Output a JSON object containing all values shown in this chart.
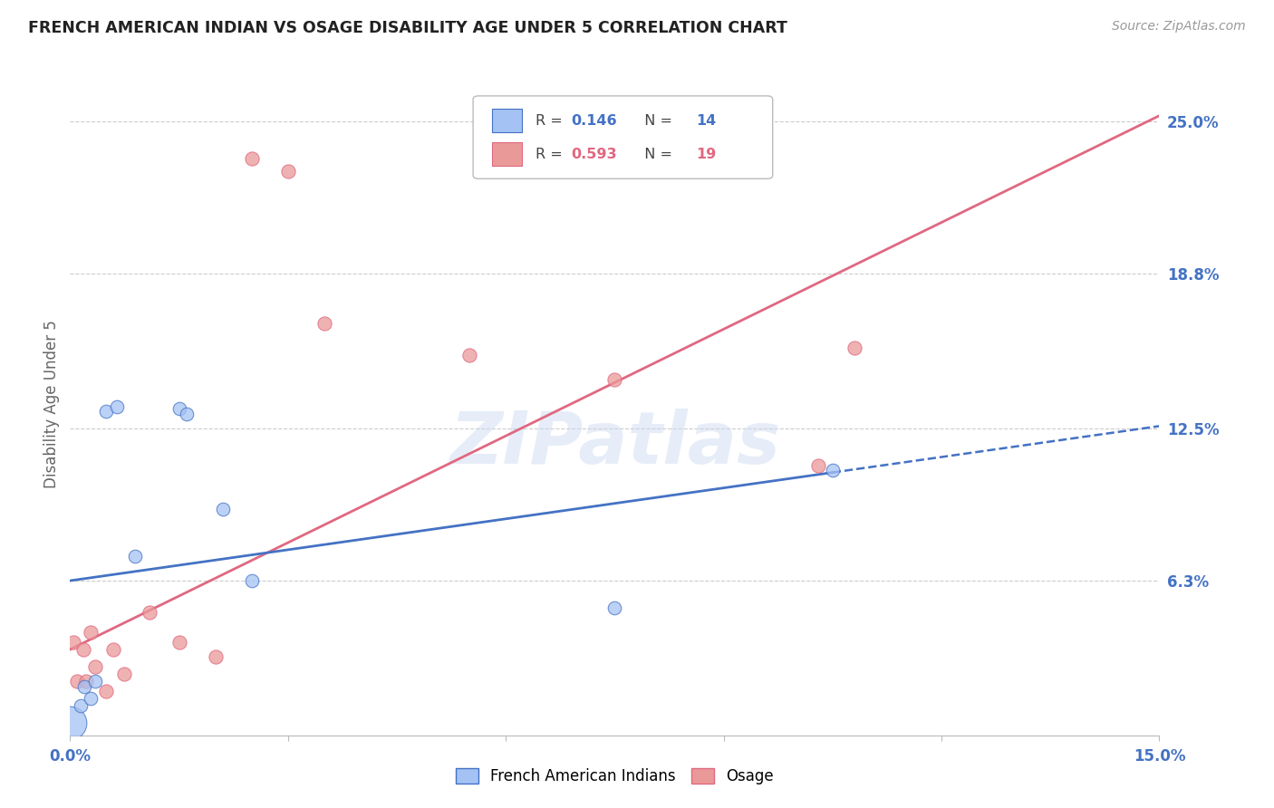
{
  "title": "FRENCH AMERICAN INDIAN VS OSAGE DISABILITY AGE UNDER 5 CORRELATION CHART",
  "source": "Source: ZipAtlas.com",
  "ylabel": "Disability Age Under 5",
  "ytick_vals": [
    6.3,
    12.5,
    18.8,
    25.0
  ],
  "xlim": [
    0.0,
    15.0
  ],
  "ylim": [
    0.0,
    27.0
  ],
  "blue_color": "#a4c2f4",
  "pink_color": "#ea9999",
  "blue_line_color": "#4472c4",
  "pink_line_color": "#e06880",
  "axis_label_color": "#4472c4",
  "french_points": [
    [
      0.0,
      0.5
    ],
    [
      0.15,
      1.2
    ],
    [
      0.2,
      2.0
    ],
    [
      0.28,
      1.5
    ],
    [
      0.35,
      2.2
    ],
    [
      0.5,
      13.2
    ],
    [
      0.65,
      13.4
    ],
    [
      0.9,
      7.3
    ],
    [
      1.5,
      13.3
    ],
    [
      1.6,
      13.1
    ],
    [
      2.1,
      9.2
    ],
    [
      2.5,
      6.3
    ],
    [
      7.5,
      5.2
    ],
    [
      10.5,
      10.8
    ]
  ],
  "osage_points": [
    [
      0.05,
      3.8
    ],
    [
      0.1,
      2.2
    ],
    [
      0.18,
      3.5
    ],
    [
      0.22,
      2.2
    ],
    [
      0.28,
      4.2
    ],
    [
      0.35,
      2.8
    ],
    [
      0.5,
      1.8
    ],
    [
      0.6,
      3.5
    ],
    [
      0.75,
      2.5
    ],
    [
      1.1,
      5.0
    ],
    [
      1.5,
      3.8
    ],
    [
      2.0,
      3.2
    ],
    [
      2.5,
      23.5
    ],
    [
      3.0,
      23.0
    ],
    [
      3.5,
      16.8
    ],
    [
      5.5,
      15.5
    ],
    [
      7.5,
      14.5
    ],
    [
      10.3,
      11.0
    ],
    [
      10.8,
      15.8
    ]
  ],
  "watermark": "ZIPatlas",
  "blue_line_x_solid_end": 10.5,
  "blue_intercept": 6.3,
  "blue_slope": 0.42,
  "pink_intercept": 3.5,
  "pink_slope": 1.45
}
